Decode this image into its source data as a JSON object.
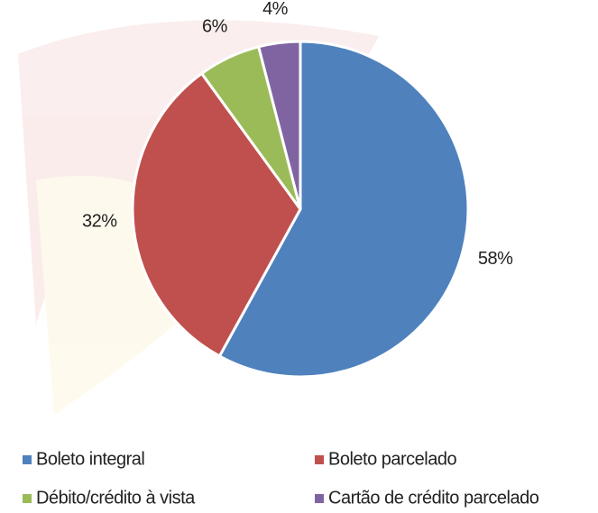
{
  "chart_data": {
    "type": "pie",
    "categories": [
      "Boleto integral",
      "Boleto parcelado",
      "Débito/crédito à vista",
      "Cartão de crédito parcelado"
    ],
    "values": [
      58,
      32,
      6,
      4
    ],
    "value_labels": [
      "58%",
      "32%",
      "6%",
      "4%"
    ],
    "colors": [
      "#4f81bd",
      "#c0504d",
      "#9bbb59",
      "#8064a2"
    ]
  }
}
